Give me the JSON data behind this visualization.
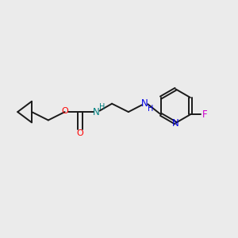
{
  "background_color": "#ebebeb",
  "bond_color": "#1a1a1a",
  "atom_colors": {
    "O_red": "#ff0000",
    "N_blue": "#0000e6",
    "NH_teal": "#008080",
    "F_magenta": "#cc00cc",
    "C_black": "#1a1a1a"
  },
  "figsize": [
    3.0,
    3.0
  ],
  "dpi": 100,
  "xlim": [
    0,
    10
  ],
  "ylim": [
    0,
    10
  ]
}
